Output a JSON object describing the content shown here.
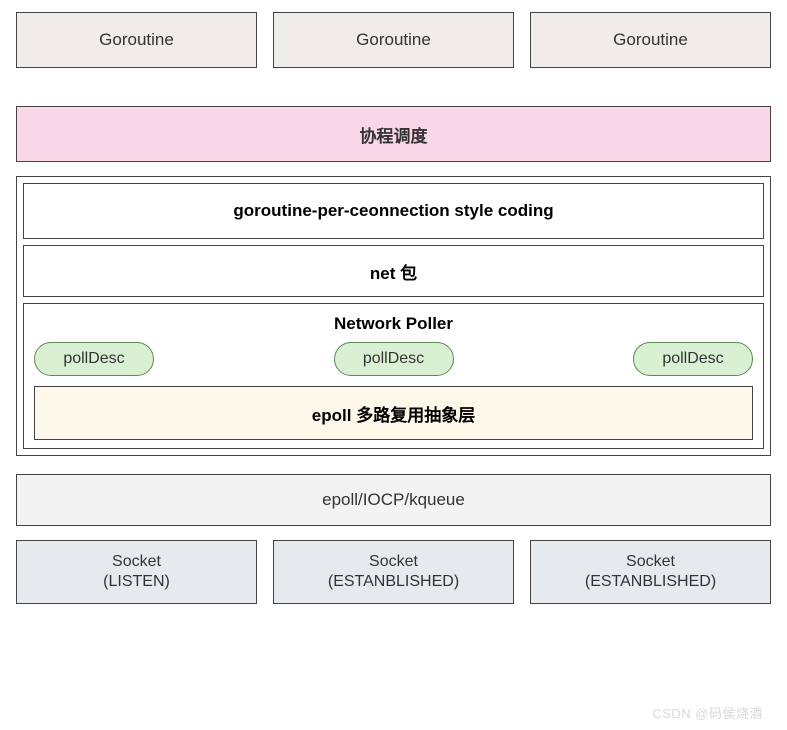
{
  "colors": {
    "goroutine_bg": "#efeceb",
    "sched_bg": "#fad7e6",
    "polldesc_bg": "#d9f0d2",
    "polldesc_border": "#5d8a52",
    "epoll_abs_bg": "#fdf8ea",
    "epoll_impl_bg": "#f3f3f3",
    "socket_bg": "#e6eaef",
    "border": "#444444",
    "text": "#333333",
    "background": "#ffffff"
  },
  "goroutines": [
    "Goroutine",
    "Goroutine",
    "Goroutine"
  ],
  "scheduler": "协程调度",
  "gpc": "goroutine-per-ceonnection style coding",
  "net_pkg": "net 包",
  "network_poller": {
    "title": "Network Poller",
    "polldesc": [
      "pollDesc",
      "pollDesc",
      "pollDesc"
    ],
    "epoll_abstract": "epoll 多路复用抽象层"
  },
  "epoll_impl": "epoll/IOCP/kqueue",
  "sockets": [
    {
      "line1": "Socket",
      "line2": "(LISTEN)"
    },
    {
      "line1": "Socket",
      "line2": "(ESTANBLISHED)"
    },
    {
      "line1": "Socket",
      "line2": "(ESTANBLISHED)"
    }
  ],
  "watermark": "CSDN @码侯烧酒"
}
